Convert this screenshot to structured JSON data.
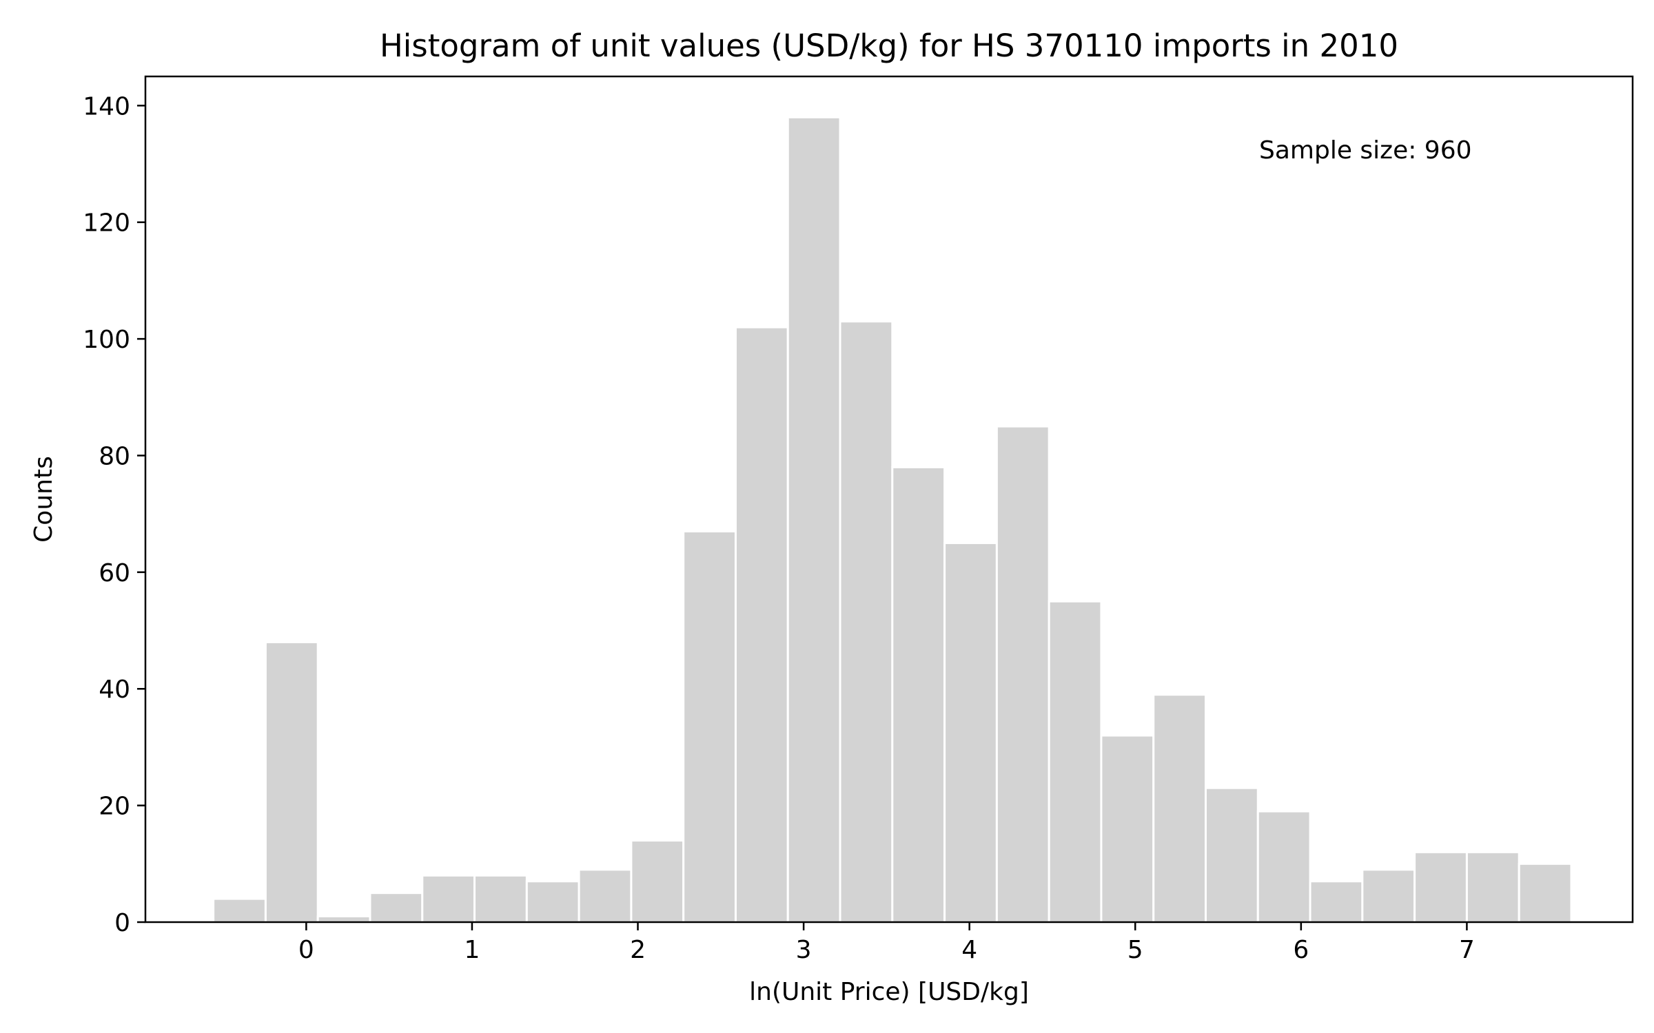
{
  "chart_data": {
    "type": "bar",
    "title": "Histogram of unit values (USD/kg) for HS 370110 imports in 2010",
    "xlabel": "ln(Unit Price) [USD/kg]",
    "ylabel": "Counts",
    "annotation": "Sample size: 960",
    "bar_color": "#d3d3d3",
    "bar_edge_color": "#ffffff",
    "bin_edges": [
      -0.56,
      -0.245,
      0.07,
      0.385,
      0.7,
      1.015,
      1.33,
      1.645,
      1.96,
      2.275,
      2.59,
      2.905,
      3.22,
      3.535,
      3.85,
      4.165,
      4.48,
      4.795,
      5.11,
      5.425,
      5.74,
      6.055,
      6.37,
      6.685,
      7.0,
      7.315,
      7.63
    ],
    "counts": [
      4,
      48,
      1,
      5,
      8,
      8,
      7,
      9,
      14,
      67,
      102,
      138,
      103,
      78,
      65,
      85,
      55,
      32,
      39,
      23,
      19,
      7,
      9,
      12,
      12,
      10
    ],
    "xlim": [
      -0.97,
      8.0
    ],
    "ylim": [
      0,
      145
    ],
    "xticks": [
      0,
      1,
      2,
      3,
      4,
      5,
      6,
      7
    ],
    "yticks": [
      0,
      20,
      40,
      60,
      80,
      100,
      120,
      140
    ],
    "grid": false,
    "legend": "none"
  }
}
